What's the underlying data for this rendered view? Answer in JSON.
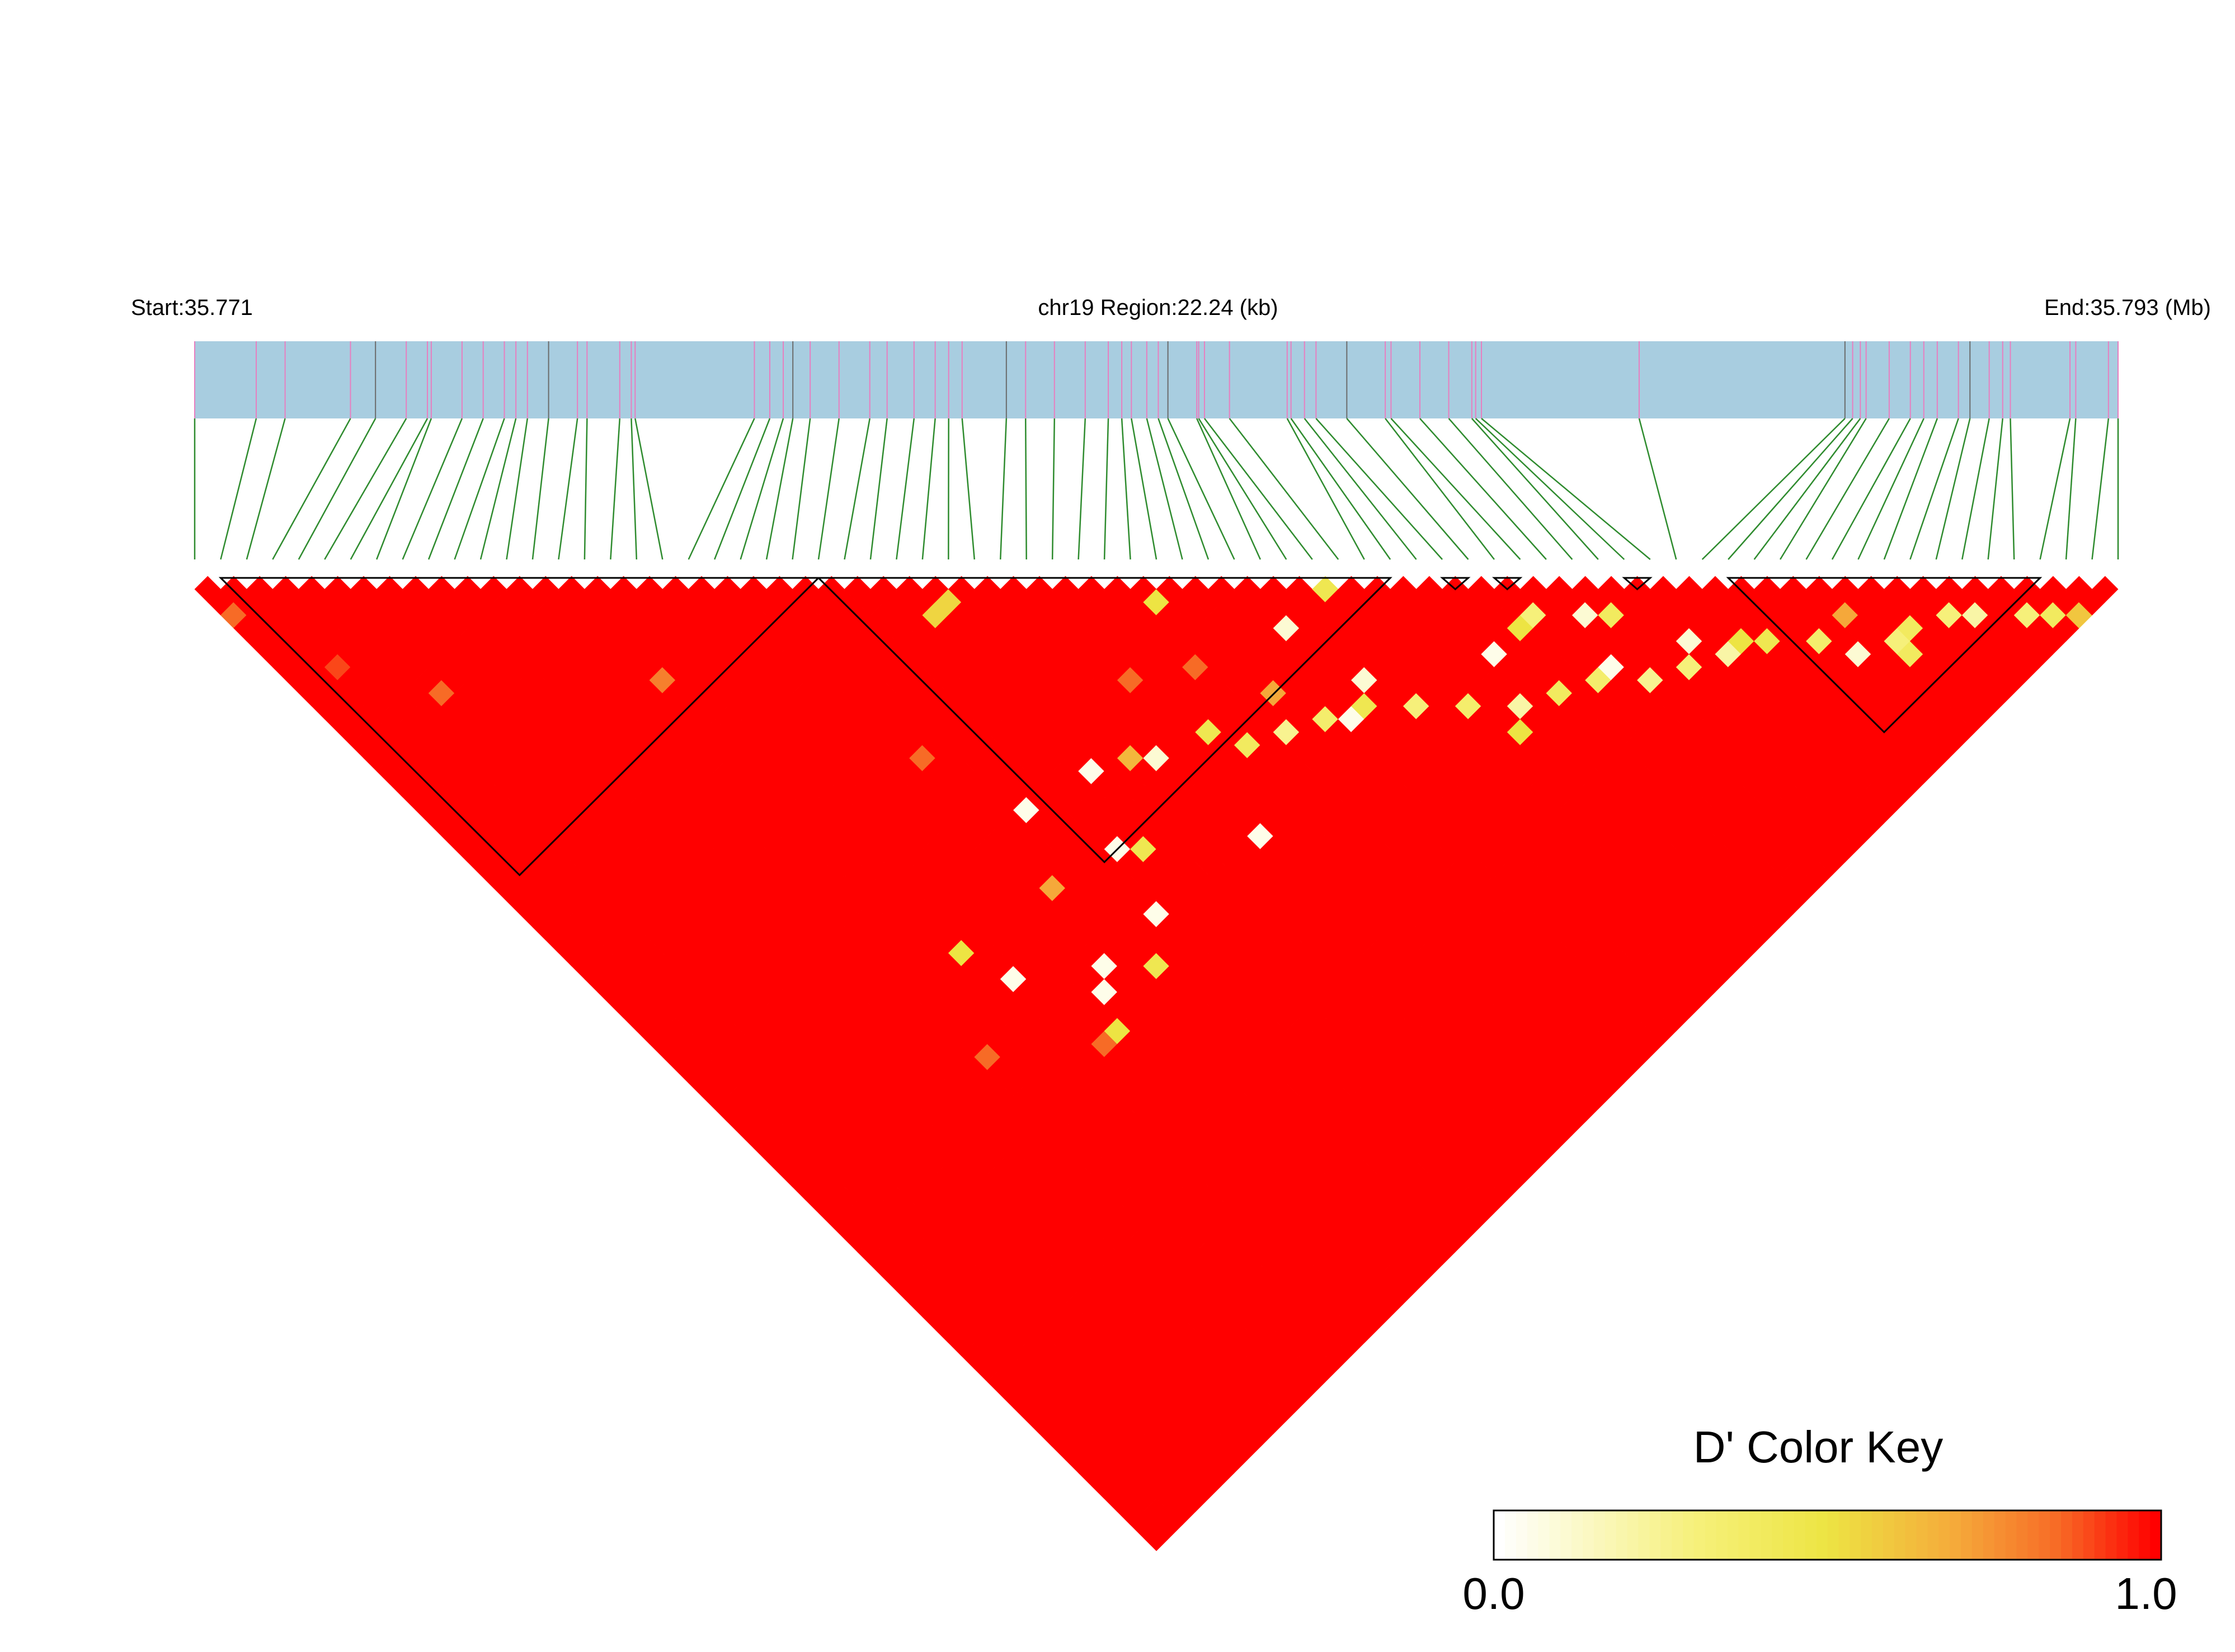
{
  "chart_data": {
    "type": "heatmap",
    "title": "",
    "start_label": "Start:35.771",
    "region_label": "chr19 Region:22.24 (kb)",
    "end_label": "End:35.793 (Mb)",
    "start_mb": 35.771,
    "end_mb": 35.793,
    "region_kb": 22.24,
    "n_snps": 75,
    "snp_positions_frac": [
      0.0,
      0.032,
      0.047,
      0.081,
      0.094,
      0.11,
      0.121,
      0.123,
      0.139,
      0.15,
      0.161,
      0.167,
      0.173,
      0.184,
      0.199,
      0.204,
      0.221,
      0.227,
      0.229,
      0.291,
      0.299,
      0.306,
      0.311,
      0.32,
      0.335,
      0.351,
      0.36,
      0.374,
      0.385,
      0.392,
      0.399,
      0.422,
      0.432,
      0.447,
      0.463,
      0.475,
      0.482,
      0.487,
      0.495,
      0.501,
      0.506,
      0.521,
      0.522,
      0.525,
      0.538,
      0.568,
      0.57,
      0.577,
      0.583,
      0.599,
      0.619,
      0.622,
      0.637,
      0.652,
      0.664,
      0.666,
      0.669,
      0.751,
      0.858,
      0.862,
      0.866,
      0.869,
      0.881,
      0.892,
      0.899,
      0.906,
      0.917,
      0.923,
      0.933,
      0.94,
      0.944,
      0.975,
      0.978,
      0.995,
      1.0
    ],
    "snp_marker_colors": [
      "#e77fc0",
      "#6b6b6b"
    ],
    "strip_color": "#a8cde0",
    "connector_color": "#2e8b2e",
    "measure": "D'",
    "value_range": [
      0.0,
      1.0
    ],
    "color_scale": [
      "#ffffff",
      "#f6f07a",
      "#ede443",
      "#f5a83a",
      "#f76b26",
      "#ff0000"
    ],
    "default_value": 1.0,
    "low_ld_cells": [
      {
        "i": 0,
        "j": 3,
        "v": 0.85
      },
      {
        "i": 2,
        "j": 9,
        "v": 0.9
      },
      {
        "i": 5,
        "j": 14,
        "v": 0.85
      },
      {
        "i": 14,
        "j": 22,
        "v": 0.8
      },
      {
        "i": 27,
        "j": 30,
        "v": 0.55
      },
      {
        "i": 28,
        "j": 30,
        "v": 0.55
      },
      {
        "i": 35,
        "j": 42,
        "v": 0.85
      },
      {
        "i": 32,
        "j": 40,
        "v": 0.85
      },
      {
        "i": 21,
        "j": 35,
        "v": 0.85
      },
      {
        "i": 36,
        "j": 38,
        "v": 0.5
      },
      {
        "i": 43,
        "j": 44,
        "v": 0.45
      },
      {
        "i": 52,
        "j": 55,
        "v": 0.1
      },
      {
        "i": 55,
        "j": 60,
        "v": 0.1
      },
      {
        "i": 50,
        "j": 53,
        "v": 0.3
      },
      {
        "i": 57,
        "j": 62,
        "v": 0.5
      },
      {
        "i": 61,
        "j": 67,
        "v": 0.1
      },
      {
        "i": 63,
        "j": 68,
        "v": 0.3
      },
      {
        "i": 63,
        "j": 69,
        "v": 0.4
      },
      {
        "i": 62,
        "j": 65,
        "v": 0.7
      },
      {
        "i": 69,
        "j": 72,
        "v": 0.3
      },
      {
        "i": 70,
        "j": 73,
        "v": 0.4
      },
      {
        "i": 71,
        "j": 74,
        "v": 0.6
      },
      {
        "i": 67,
        "j": 70,
        "v": 0.2
      },
      {
        "i": 66,
        "j": 69,
        "v": 0.3
      },
      {
        "i": 64,
        "j": 68,
        "v": 0.4
      },
      {
        "i": 60,
        "j": 65,
        "v": 0.35
      },
      {
        "i": 58,
        "j": 63,
        "v": 0.45
      },
      {
        "i": 56,
        "j": 62,
        "v": 0.2
      },
      {
        "i": 54,
        "j": 61,
        "v": 0.3
      },
      {
        "i": 52,
        "j": 60,
        "v": 0.25
      },
      {
        "i": 50,
        "j": 58,
        "v": 0.35
      },
      {
        "i": 48,
        "j": 57,
        "v": 0.4
      },
      {
        "i": 46,
        "j": 56,
        "v": 0.2
      },
      {
        "i": 44,
        "j": 54,
        "v": 0.35
      },
      {
        "i": 42,
        "j": 52,
        "v": 0.3
      },
      {
        "i": 40,
        "j": 50,
        "v": 0.45
      },
      {
        "i": 38,
        "j": 49,
        "v": 0.35
      },
      {
        "i": 36,
        "j": 48,
        "v": 0.25
      },
      {
        "i": 34,
        "j": 47,
        "v": 0.4
      },
      {
        "i": 40,
        "j": 44,
        "v": 0.1
      },
      {
        "i": 41,
        "j": 49,
        "v": 0.1
      },
      {
        "i": 30,
        "j": 44,
        "v": 0.1
      },
      {
        "i": 33,
        "j": 45,
        "v": 0.45
      },
      {
        "i": 27,
        "j": 42,
        "v": 0.05
      },
      {
        "i": 25,
        "j": 46,
        "v": 0.05
      },
      {
        "i": 31,
        "j": 51,
        "v": 0.05
      },
      {
        "i": 26,
        "j": 47,
        "v": 0.45
      },
      {
        "i": 39,
        "j": 50,
        "v": 0.05
      },
      {
        "i": 45,
        "j": 57,
        "v": 0.5
      },
      {
        "i": 47,
        "j": 53,
        "v": 0.05
      },
      {
        "i": 49,
        "j": 53,
        "v": 0.5
      },
      {
        "i": 51,
        "j": 58,
        "v": 0.05
      },
      {
        "i": 53,
        "j": 56,
        "v": 0.4
      },
      {
        "i": 24,
        "j": 50,
        "v": 0.05
      },
      {
        "i": 22,
        "j": 52,
        "v": 0.45
      },
      {
        "i": 20,
        "j": 50,
        "v": 0.05
      },
      {
        "i": 19,
        "j": 51,
        "v": 0.05
      },
      {
        "i": 18,
        "j": 53,
        "v": 0.5
      },
      {
        "i": 17,
        "j": 53,
        "v": 0.85
      },
      {
        "i": 23,
        "j": 41,
        "v": 0.05
      },
      {
        "i": 16,
        "j": 47,
        "v": 0.05
      },
      {
        "i": 15,
        "j": 44,
        "v": 0.5
      },
      {
        "i": 12,
        "j": 49,
        "v": 0.85
      },
      {
        "i": 37,
        "j": 46,
        "v": 0.7
      },
      {
        "i": 29,
        "j": 43,
        "v": 0.65
      },
      {
        "i": 21,
        "j": 45,
        "v": 0.7
      }
    ],
    "blocks": [
      [
        1,
        24
      ],
      [
        24,
        46
      ],
      [
        48,
        49
      ],
      [
        50,
        51
      ],
      [
        55,
        56
      ],
      [
        59,
        71
      ]
    ],
    "legend": {
      "title": "D' Color Key",
      "min_label": "0.0",
      "max_label": "1.0",
      "position": "bottom-right"
    }
  }
}
